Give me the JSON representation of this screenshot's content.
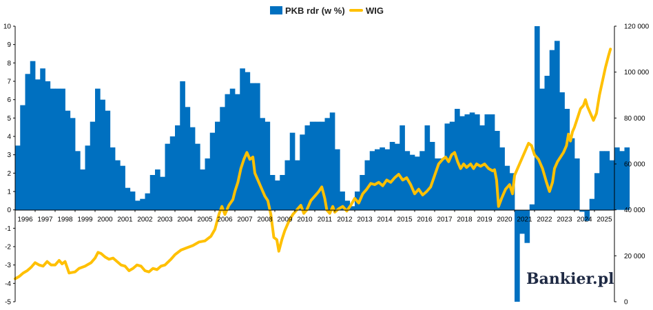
{
  "chart_data": {
    "type": "bar+line",
    "title": "",
    "legend": {
      "placement": "top-center",
      "entries": [
        {
          "name": "PKB rdr (w %)",
          "type": "bar",
          "color": "#0070c0"
        },
        {
          "name": "WIG",
          "type": "line",
          "color": "#ffc000"
        }
      ]
    },
    "x_axis": {
      "range": [
        1996,
        2026
      ],
      "tick_labels": [
        "1996",
        "1997",
        "1998",
        "1999",
        "2000",
        "2001",
        "2002",
        "2003",
        "2004",
        "2005",
        "2006",
        "2007",
        "2008",
        "2009",
        "2010",
        "2011",
        "2012",
        "2013",
        "2014",
        "2015",
        "2016",
        "2017",
        "2018",
        "2019",
        "2020",
        "2021",
        "2022",
        "2023",
        "2024",
        "2025"
      ]
    },
    "y_axis_left": {
      "range": [
        -5,
        10
      ],
      "tick_labels": [
        "-5",
        "-4",
        "-3",
        "-2",
        "-1",
        "0",
        "1",
        "2",
        "3",
        "4",
        "5",
        "6",
        "7",
        "8",
        "9",
        "10"
      ]
    },
    "y_axis_right": {
      "range": [
        0,
        120000
      ],
      "tick_values": [
        0,
        20000,
        40000,
        60000,
        80000,
        100000,
        120000
      ],
      "tick_labels": [
        "0",
        "20 000",
        "40 000",
        "60 000",
        "80 000",
        "100 000",
        "120 000"
      ]
    },
    "grid": false,
    "series": [
      {
        "name": "PKB rdr (w %)",
        "axis": "left",
        "type": "bar",
        "start": 1996.0,
        "step": 0.25,
        "values": [
          3.5,
          5.7,
          7.4,
          8.1,
          7.1,
          7.7,
          7.0,
          6.6,
          6.6,
          6.6,
          5.4,
          5.0,
          3.2,
          2.2,
          3.5,
          4.8,
          6.6,
          6.0,
          5.4,
          3.4,
          2.7,
          2.4,
          1.2,
          1.0,
          0.5,
          0.6,
          0.9,
          1.9,
          2.2,
          1.8,
          3.6,
          4.0,
          4.6,
          7.0,
          5.6,
          4.5,
          3.6,
          2.2,
          2.8,
          4.2,
          4.8,
          5.6,
          6.3,
          6.6,
          6.3,
          7.7,
          7.5,
          6.9,
          6.9,
          5.0,
          4.8,
          1.9,
          1.6,
          1.9,
          2.7,
          4.2,
          2.7,
          4.1,
          4.6,
          4.8,
          4.8,
          4.8,
          5.0,
          5.3,
          3.3,
          1.0,
          0.5,
          0.2,
          1.0,
          1.9,
          2.7,
          3.2,
          3.3,
          3.4,
          3.3,
          3.7,
          3.6,
          4.6,
          3.2,
          3.0,
          2.9,
          3.2,
          4.6,
          3.7,
          2.8,
          2.8,
          4.7,
          4.8,
          5.5,
          5.1,
          5.2,
          5.3,
          5.2,
          4.6,
          5.2,
          5.2,
          4.3,
          3.4,
          2.4,
          2.0,
          -5.0,
          -1.3,
          -1.8,
          0.3,
          10.0,
          6.6,
          7.3,
          8.7,
          9.2,
          6.4,
          5.5,
          3.9,
          2.8,
          -0.1,
          -0.6,
          0.6,
          2.0,
          3.2,
          3.2,
          2.7,
          3.4,
          3.2,
          3.4
        ]
      },
      {
        "name": "WIG",
        "axis": "right",
        "type": "line",
        "points": [
          [
            1996.0,
            10000
          ],
          [
            1996.2,
            11000
          ],
          [
            1996.4,
            12500
          ],
          [
            1996.6,
            13500
          ],
          [
            1996.8,
            15000
          ],
          [
            1997.0,
            17000
          ],
          [
            1997.2,
            16000
          ],
          [
            1997.4,
            15500
          ],
          [
            1997.6,
            17500
          ],
          [
            1997.8,
            16000
          ],
          [
            1998.0,
            16000
          ],
          [
            1998.2,
            18000
          ],
          [
            1998.35,
            16500
          ],
          [
            1998.5,
            17500
          ],
          [
            1998.7,
            12500
          ],
          [
            1999.0,
            13000
          ],
          [
            1999.2,
            14500
          ],
          [
            1999.5,
            15500
          ],
          [
            1999.8,
            17000
          ],
          [
            2000.0,
            19000
          ],
          [
            2000.15,
            21500
          ],
          [
            2000.3,
            21000
          ],
          [
            2000.5,
            19500
          ],
          [
            2000.7,
            18500
          ],
          [
            2000.9,
            19000
          ],
          [
            2001.1,
            17500
          ],
          [
            2001.3,
            16000
          ],
          [
            2001.5,
            15500
          ],
          [
            2001.7,
            13500
          ],
          [
            2001.9,
            14500
          ],
          [
            2002.1,
            16000
          ],
          [
            2002.3,
            15500
          ],
          [
            2002.5,
            13500
          ],
          [
            2002.7,
            13000
          ],
          [
            2002.9,
            14500
          ],
          [
            2003.1,
            14000
          ],
          [
            2003.3,
            15500
          ],
          [
            2003.5,
            16000
          ],
          [
            2003.8,
            18500
          ],
          [
            2004.0,
            20500
          ],
          [
            2004.3,
            22500
          ],
          [
            2004.6,
            23500
          ],
          [
            2004.9,
            24500
          ],
          [
            2005.2,
            26000
          ],
          [
            2005.5,
            26500
          ],
          [
            2005.8,
            28500
          ],
          [
            2006.0,
            31500
          ],
          [
            2006.2,
            38000
          ],
          [
            2006.35,
            41500
          ],
          [
            2006.5,
            38000
          ],
          [
            2006.7,
            42000
          ],
          [
            2006.9,
            44500
          ],
          [
            2007.0,
            48000
          ],
          [
            2007.15,
            52000
          ],
          [
            2007.3,
            58000
          ],
          [
            2007.45,
            62000
          ],
          [
            2007.6,
            65000
          ],
          [
            2007.75,
            62000
          ],
          [
            2007.9,
            63000
          ],
          [
            2008.0,
            56000
          ],
          [
            2008.15,
            53000
          ],
          [
            2008.3,
            50000
          ],
          [
            2008.5,
            46000
          ],
          [
            2008.65,
            44000
          ],
          [
            2008.8,
            38000
          ],
          [
            2008.95,
            28000
          ],
          [
            2009.1,
            27000
          ],
          [
            2009.2,
            22000
          ],
          [
            2009.35,
            27000
          ],
          [
            2009.5,
            31000
          ],
          [
            2009.7,
            35000
          ],
          [
            2009.9,
            38000
          ],
          [
            2010.1,
            40000
          ],
          [
            2010.3,
            42000
          ],
          [
            2010.45,
            38500
          ],
          [
            2010.6,
            40000
          ],
          [
            2010.8,
            44000
          ],
          [
            2011.0,
            46000
          ],
          [
            2011.2,
            48000
          ],
          [
            2011.35,
            50000
          ],
          [
            2011.5,
            45000
          ],
          [
            2011.6,
            40000
          ],
          [
            2011.75,
            38500
          ],
          [
            2011.9,
            41500
          ],
          [
            2012.0,
            39000
          ],
          [
            2012.2,
            40500
          ],
          [
            2012.4,
            41500
          ],
          [
            2012.6,
            39500
          ],
          [
            2012.8,
            42000
          ],
          [
            2013.0,
            45000
          ],
          [
            2013.2,
            43000
          ],
          [
            2013.4,
            47000
          ],
          [
            2013.6,
            49000
          ],
          [
            2013.8,
            51500
          ],
          [
            2014.0,
            51000
          ],
          [
            2014.2,
            52000
          ],
          [
            2014.4,
            50500
          ],
          [
            2014.6,
            53000
          ],
          [
            2014.8,
            52000
          ],
          [
            2015.0,
            54000
          ],
          [
            2015.2,
            55500
          ],
          [
            2015.4,
            53000
          ],
          [
            2015.6,
            54000
          ],
          [
            2015.8,
            51000
          ],
          [
            2016.0,
            47000
          ],
          [
            2016.2,
            49000
          ],
          [
            2016.4,
            46500
          ],
          [
            2016.6,
            48000
          ],
          [
            2016.8,
            50000
          ],
          [
            2017.0,
            55000
          ],
          [
            2017.2,
            60000
          ],
          [
            2017.4,
            62000
          ],
          [
            2017.55,
            63000
          ],
          [
            2017.7,
            61000
          ],
          [
            2017.85,
            64000
          ],
          [
            2018.0,
            65000
          ],
          [
            2018.15,
            61000
          ],
          [
            2018.3,
            58000
          ],
          [
            2018.45,
            60000
          ],
          [
            2018.6,
            58500
          ],
          [
            2018.8,
            60000
          ],
          [
            2018.95,
            58000
          ],
          [
            2019.1,
            60000
          ],
          [
            2019.3,
            59000
          ],
          [
            2019.5,
            60000
          ],
          [
            2019.7,
            58000
          ],
          [
            2019.9,
            57000
          ],
          [
            2020.0,
            57500
          ],
          [
            2020.1,
            53000
          ],
          [
            2020.2,
            41500
          ],
          [
            2020.35,
            45000
          ],
          [
            2020.55,
            49000
          ],
          [
            2020.75,
            51000
          ],
          [
            2020.9,
            47000
          ],
          [
            2021.0,
            55000
          ],
          [
            2021.2,
            59000
          ],
          [
            2021.4,
            63000
          ],
          [
            2021.55,
            66000
          ],
          [
            2021.7,
            69000
          ],
          [
            2021.85,
            68000
          ],
          [
            2022.0,
            64000
          ],
          [
            2022.2,
            62000
          ],
          [
            2022.4,
            58000
          ],
          [
            2022.6,
            52000
          ],
          [
            2022.75,
            48000
          ],
          [
            2022.9,
            52000
          ],
          [
            2023.0,
            58000
          ],
          [
            2023.15,
            61000
          ],
          [
            2023.3,
            63000
          ],
          [
            2023.45,
            65000
          ],
          [
            2023.6,
            68000
          ],
          [
            2023.7,
            73000
          ],
          [
            2023.8,
            70000
          ],
          [
            2023.9,
            74000
          ],
          [
            2024.0,
            76000
          ],
          [
            2024.15,
            80000
          ],
          [
            2024.3,
            84000
          ],
          [
            2024.45,
            85500
          ],
          [
            2024.55,
            88000
          ],
          [
            2024.65,
            85000
          ],
          [
            2024.8,
            82000
          ],
          [
            2024.95,
            79000
          ],
          [
            2025.1,
            82000
          ],
          [
            2025.25,
            90000
          ],
          [
            2025.4,
            96000
          ],
          [
            2025.55,
            102000
          ],
          [
            2025.7,
            107000
          ],
          [
            2025.8,
            110000
          ]
        ]
      }
    ],
    "watermark": {
      "text": "Bankier",
      "suffix": "pl",
      "dot_color": "#e30613"
    }
  }
}
